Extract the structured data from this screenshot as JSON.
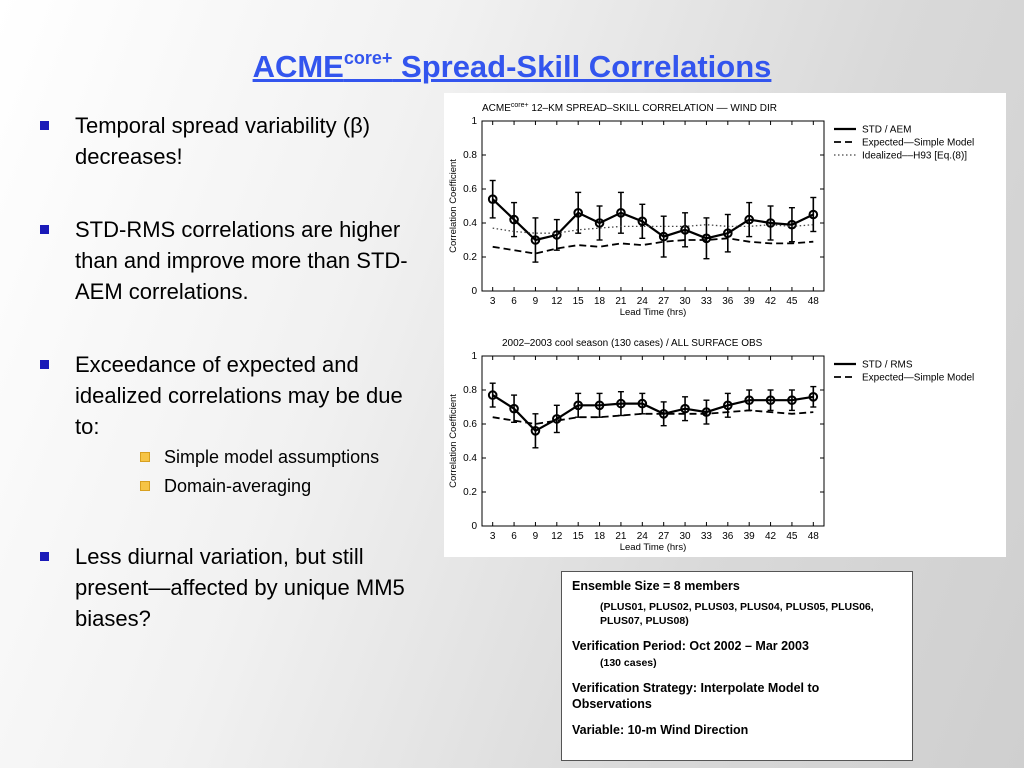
{
  "slide": {
    "title_main": "ACME",
    "title_sup": "core+",
    "title_rest": " Spread-Skill Correlations",
    "bullets": [
      {
        "text": "Temporal spread variability (β) decreases!"
      },
      {
        "text": "STD-RMS correlations are higher than and improve more than STD-AEM correlations."
      },
      {
        "text": "Exceedance of expected and idealized correlations may be due to:"
      },
      {
        "text": "Less diurnal variation, but still present—affected by unique MM5 biases?"
      }
    ],
    "sub_bullets": [
      "Simple model assumptions",
      "Domain-averaging"
    ]
  },
  "info_box": {
    "ensemble": "Ensemble Size = 8 members",
    "members": "(PLUS01, PLUS02, PLUS03, PLUS04, PLUS05, PLUS06, PLUS07, PLUS08)",
    "period": "Verification Period:  Oct 2002 – Mar 2003",
    "cases": "(130 cases)",
    "strategy": "Verification Strategy:  Interpolate Model to Observations",
    "variable": "Variable: 10-m Wind Direction"
  },
  "colors": {
    "title": "#3355ee",
    "bullet": "#1a1ab8",
    "sub_bullet": "#f6c445"
  },
  "chart_data": [
    {
      "type": "line",
      "title_prefix": "ACME",
      "title_sup": "core+",
      "title": " 12–KM SPREAD–SKILL CORRELATION –– WIND DIR",
      "xlabel": "Lead Time (hrs)",
      "ylabel": "Correlation Coefficient",
      "ylim": [
        0,
        1
      ],
      "yticks": [
        "0",
        "0.2",
        "0.4",
        "0.6",
        "0.8",
        "1"
      ],
      "x": [
        3,
        6,
        9,
        12,
        15,
        18,
        21,
        24,
        27,
        30,
        33,
        36,
        39,
        42,
        45,
        48
      ],
      "legend_position": "top-right",
      "series": [
        {
          "name": "STD / AEM",
          "style": "solid-markers",
          "values": [
            0.54,
            0.42,
            0.3,
            0.33,
            0.46,
            0.4,
            0.46,
            0.41,
            0.32,
            0.36,
            0.31,
            0.34,
            0.42,
            0.4,
            0.39,
            0.45
          ],
          "err": [
            0.11,
            0.1,
            0.13,
            0.09,
            0.12,
            0.1,
            0.12,
            0.1,
            0.12,
            0.1,
            0.12,
            0.11,
            0.1,
            0.1,
            0.1,
            0.1
          ]
        },
        {
          "name": "Expected—Simple Model",
          "style": "dashed",
          "values": [
            0.26,
            0.24,
            0.22,
            0.25,
            0.27,
            0.26,
            0.28,
            0.27,
            0.29,
            0.3,
            0.3,
            0.31,
            0.29,
            0.28,
            0.28,
            0.29
          ]
        },
        {
          "name": "Idealized––H93 [Eq.(8)]",
          "style": "dotted",
          "values": [
            0.37,
            0.35,
            0.34,
            0.34,
            0.36,
            0.37,
            0.38,
            0.38,
            0.38,
            0.38,
            0.39,
            0.38,
            0.38,
            0.39,
            0.38,
            0.39
          ]
        }
      ]
    },
    {
      "type": "line",
      "title": "2002–2003 cool season (130 cases) / ALL SURFACE OBS",
      "xlabel": "Lead Time (hrs)",
      "ylabel": "Correlation Coefficient",
      "ylim": [
        0,
        1
      ],
      "yticks": [
        "0",
        "0.2",
        "0.4",
        "0.6",
        "0.8",
        "1"
      ],
      "x": [
        3,
        6,
        9,
        12,
        15,
        18,
        21,
        24,
        27,
        30,
        33,
        36,
        39,
        42,
        45,
        48
      ],
      "legend_position": "top-right",
      "series": [
        {
          "name": "STD / RMS",
          "style": "solid-markers",
          "values": [
            0.77,
            0.69,
            0.56,
            0.63,
            0.71,
            0.71,
            0.72,
            0.72,
            0.66,
            0.69,
            0.67,
            0.71,
            0.74,
            0.74,
            0.74,
            0.76
          ],
          "err": [
            0.07,
            0.08,
            0.1,
            0.08,
            0.07,
            0.07,
            0.07,
            0.06,
            0.07,
            0.07,
            0.07,
            0.07,
            0.06,
            0.06,
            0.06,
            0.06
          ]
        },
        {
          "name": "Expected—Simple Model",
          "style": "dashed",
          "values": [
            0.64,
            0.62,
            0.6,
            0.62,
            0.64,
            0.64,
            0.65,
            0.66,
            0.66,
            0.66,
            0.66,
            0.67,
            0.68,
            0.67,
            0.66,
            0.67
          ]
        }
      ]
    }
  ]
}
